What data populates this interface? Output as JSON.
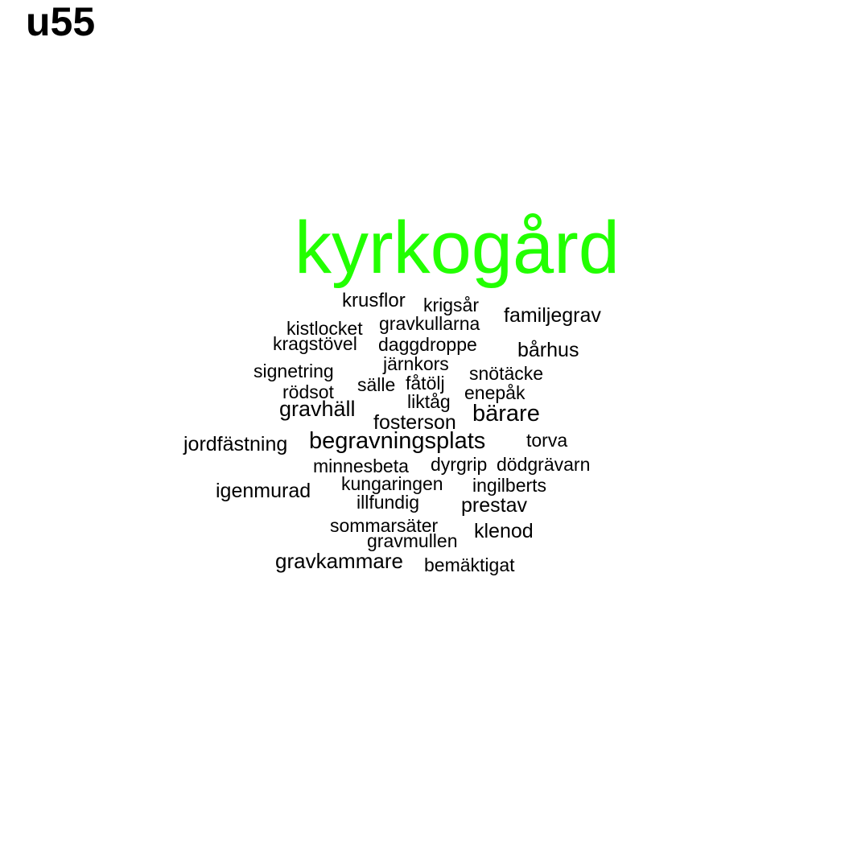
{
  "title": "u55",
  "colors": {
    "highlight": "#22ff00",
    "text": "#000000",
    "background": "#ffffff"
  },
  "words": [
    {
      "text": "kyrkogård",
      "highlight": true
    },
    {
      "text": "krusflor"
    },
    {
      "text": "krigsår"
    },
    {
      "text": "familjegrav"
    },
    {
      "text": "kistlocket"
    },
    {
      "text": "gravkullarna"
    },
    {
      "text": "kragstövel"
    },
    {
      "text": "daggdroppe"
    },
    {
      "text": "bårhus"
    },
    {
      "text": "järnkors"
    },
    {
      "text": "signetring"
    },
    {
      "text": "snötäcke"
    },
    {
      "text": "sälle"
    },
    {
      "text": "fåtölj"
    },
    {
      "text": "rödsot"
    },
    {
      "text": "enepåk"
    },
    {
      "text": "liktåg"
    },
    {
      "text": "gravhäll"
    },
    {
      "text": "bärare"
    },
    {
      "text": "fosterson"
    },
    {
      "text": "jordfästning"
    },
    {
      "text": "begravningsplats"
    },
    {
      "text": "torva"
    },
    {
      "text": "minnesbeta"
    },
    {
      "text": "dyrgrip"
    },
    {
      "text": "dödgrävarn"
    },
    {
      "text": "kungaringen"
    },
    {
      "text": "ingilberts"
    },
    {
      "text": "igenmurad"
    },
    {
      "text": "illfundig"
    },
    {
      "text": "prestav"
    },
    {
      "text": "sommarsäter"
    },
    {
      "text": "klenod"
    },
    {
      "text": "gravmullen"
    },
    {
      "text": "gravkammare"
    },
    {
      "text": "bemäktigat"
    }
  ]
}
